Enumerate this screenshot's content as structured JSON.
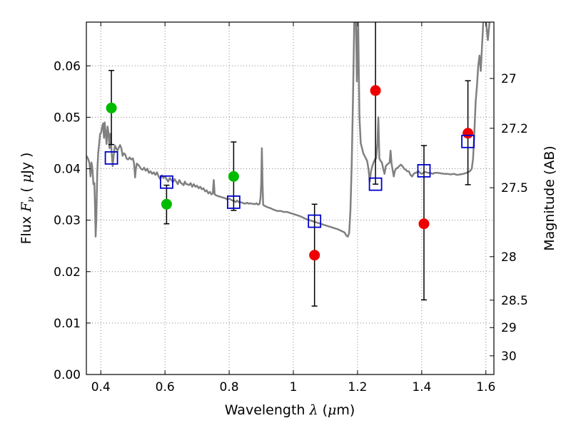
{
  "chart_data": {
    "type": "scatter",
    "title": "",
    "xlabel": {
      "prefix": "Wavelength  ",
      "symbol": "λ",
      "paren_open": " (",
      "unit_sym": "μ",
      "unit_rest": "m)"
    },
    "ylabel": {
      "prefix": "Flux  ",
      "symbol": "F",
      "subscript": "ν",
      "unit_open": "  ( ",
      "unit_sym": "μ",
      "unit_rest": "Jy )"
    },
    "y2label": "Magnitude (AB)",
    "xlim": [
      0.355,
      1.625
    ],
    "ylim": [
      0.0,
      0.0685
    ],
    "grid": true,
    "xticks": [
      0.4,
      0.6,
      0.8,
      1.0,
      1.2,
      1.4,
      1.6
    ],
    "xtick_labels": [
      "0.4",
      "0.6",
      "0.8",
      "1",
      "1.2",
      "1.4",
      "1.6"
    ],
    "yticks": [
      0.0,
      0.01,
      0.02,
      0.03,
      0.04,
      0.05,
      0.06
    ],
    "ytick_labels": [
      "0.00",
      "0.01",
      "0.02",
      "0.03",
      "0.04",
      "0.05",
      "0.06"
    ],
    "y2ticks": [
      27,
      27.2,
      27.5,
      28,
      28.5,
      29,
      30
    ],
    "y2tick_labels": [
      "27",
      "27.2",
      "27.5",
      "28",
      "28.5",
      "29",
      "30"
    ],
    "colors": {
      "spectrum": "#808080",
      "green": "#00bb00",
      "red": "#ee0000",
      "model": "#0000cc",
      "errorbar": "#000000",
      "grid": "#888888"
    },
    "spectrum": [
      [
        0.355,
        0.0425
      ],
      [
        0.36,
        0.042
      ],
      [
        0.365,
        0.041
      ],
      [
        0.368,
        0.0385
      ],
      [
        0.371,
        0.0412
      ],
      [
        0.374,
        0.04
      ],
      [
        0.377,
        0.037
      ],
      [
        0.38,
        0.0372
      ],
      [
        0.382,
        0.033
      ],
      [
        0.384,
        0.0268
      ],
      [
        0.386,
        0.03
      ],
      [
        0.389,
        0.0395
      ],
      [
        0.392,
        0.043
      ],
      [
        0.395,
        0.045
      ],
      [
        0.398,
        0.0468
      ],
      [
        0.401,
        0.047
      ],
      [
        0.404,
        0.048
      ],
      [
        0.407,
        0.0488
      ],
      [
        0.41,
        0.046
      ],
      [
        0.412,
        0.049
      ],
      [
        0.415,
        0.047
      ],
      [
        0.418,
        0.0448
      ],
      [
        0.421,
        0.0482
      ],
      [
        0.424,
        0.047
      ],
      [
        0.427,
        0.044
      ],
      [
        0.43,
        0.0468
      ],
      [
        0.434,
        0.043
      ],
      [
        0.437,
        0.0405
      ],
      [
        0.44,
        0.0425
      ],
      [
        0.444,
        0.0445
      ],
      [
        0.448,
        0.044
      ],
      [
        0.452,
        0.0435
      ],
      [
        0.456,
        0.0441
      ],
      [
        0.46,
        0.0446
      ],
      [
        0.464,
        0.044
      ],
      [
        0.468,
        0.0425
      ],
      [
        0.472,
        0.043
      ],
      [
        0.476,
        0.0428
      ],
      [
        0.48,
        0.042
      ],
      [
        0.485,
        0.0418
      ],
      [
        0.49,
        0.0422
      ],
      [
        0.495,
        0.0418
      ],
      [
        0.5,
        0.042
      ],
      [
        0.503,
        0.0413
      ],
      [
        0.505,
        0.04
      ],
      [
        0.507,
        0.0383
      ],
      [
        0.509,
        0.0398
      ],
      [
        0.512,
        0.041
      ],
      [
        0.516,
        0.0408
      ],
      [
        0.52,
        0.0405
      ],
      [
        0.525,
        0.04
      ],
      [
        0.53,
        0.0398
      ],
      [
        0.535,
        0.0402
      ],
      [
        0.54,
        0.0396
      ],
      [
        0.545,
        0.04
      ],
      [
        0.55,
        0.0392
      ],
      [
        0.555,
        0.0395
      ],
      [
        0.56,
        0.039
      ],
      [
        0.565,
        0.0393
      ],
      [
        0.57,
        0.0388
      ],
      [
        0.575,
        0.0393
      ],
      [
        0.58,
        0.0385
      ],
      [
        0.585,
        0.038
      ],
      [
        0.59,
        0.0387
      ],
      [
        0.595,
        0.0382
      ],
      [
        0.6,
        0.0385
      ],
      [
        0.605,
        0.038
      ],
      [
        0.61,
        0.0375
      ],
      [
        0.615,
        0.0382
      ],
      [
        0.62,
        0.0378
      ],
      [
        0.625,
        0.0374
      ],
      [
        0.63,
        0.038
      ],
      [
        0.635,
        0.0375
      ],
      [
        0.64,
        0.037
      ],
      [
        0.645,
        0.0378
      ],
      [
        0.65,
        0.0372
      ],
      [
        0.655,
        0.037
      ],
      [
        0.658,
        0.0368
      ],
      [
        0.662,
        0.0375
      ],
      [
        0.666,
        0.037
      ],
      [
        0.67,
        0.037
      ],
      [
        0.675,
        0.0368
      ],
      [
        0.68,
        0.0372
      ],
      [
        0.685,
        0.0365
      ],
      [
        0.69,
        0.037
      ],
      [
        0.695,
        0.0365
      ],
      [
        0.7,
        0.0367
      ],
      [
        0.705,
        0.0362
      ],
      [
        0.71,
        0.0365
      ],
      [
        0.715,
        0.036
      ],
      [
        0.72,
        0.0362
      ],
      [
        0.725,
        0.0356
      ],
      [
        0.73,
        0.0358
      ],
      [
        0.735,
        0.0352
      ],
      [
        0.74,
        0.0355
      ],
      [
        0.745,
        0.035
      ],
      [
        0.749,
        0.0352
      ],
      [
        0.752,
        0.0378
      ],
      [
        0.755,
        0.035
      ],
      [
        0.76,
        0.0348
      ],
      [
        0.765,
        0.0347
      ],
      [
        0.77,
        0.0346
      ],
      [
        0.775,
        0.0345
      ],
      [
        0.78,
        0.0344
      ],
      [
        0.785,
        0.0343
      ],
      [
        0.79,
        0.0342
      ],
      [
        0.795,
        0.034
      ],
      [
        0.8,
        0.0342
      ],
      [
        0.805,
        0.034
      ],
      [
        0.81,
        0.0338
      ],
      [
        0.815,
        0.0338
      ],
      [
        0.82,
        0.0335
      ],
      [
        0.825,
        0.0338
      ],
      [
        0.83,
        0.0335
      ],
      [
        0.835,
        0.0335
      ],
      [
        0.84,
        0.0334
      ],
      [
        0.845,
        0.0333
      ],
      [
        0.85,
        0.0332
      ],
      [
        0.855,
        0.0334
      ],
      [
        0.86,
        0.0332
      ],
      [
        0.865,
        0.0333
      ],
      [
        0.87,
        0.0332
      ],
      [
        0.875,
        0.0332
      ],
      [
        0.88,
        0.0331
      ],
      [
        0.885,
        0.0333
      ],
      [
        0.89,
        0.033
      ],
      [
        0.895,
        0.0332
      ],
      [
        0.898,
        0.0345
      ],
      [
        0.9,
        0.0372
      ],
      [
        0.902,
        0.044
      ],
      [
        0.904,
        0.0372
      ],
      [
        0.906,
        0.033
      ],
      [
        0.91,
        0.0328
      ],
      [
        0.92,
        0.0325
      ],
      [
        0.93,
        0.0323
      ],
      [
        0.94,
        0.032
      ],
      [
        0.95,
        0.0318
      ],
      [
        0.96,
        0.0318
      ],
      [
        0.97,
        0.0316
      ],
      [
        0.98,
        0.0316
      ],
      [
        0.99,
        0.0314
      ],
      [
        1.0,
        0.0312
      ],
      [
        1.01,
        0.031
      ],
      [
        1.02,
        0.0308
      ],
      [
        1.03,
        0.0305
      ],
      [
        1.04,
        0.0302
      ],
      [
        1.05,
        0.03
      ],
      [
        1.06,
        0.0298
      ],
      [
        1.07,
        0.0296
      ],
      [
        1.08,
        0.0294
      ],
      [
        1.09,
        0.0292
      ],
      [
        1.1,
        0.029
      ],
      [
        1.11,
        0.0288
      ],
      [
        1.12,
        0.0286
      ],
      [
        1.13,
        0.0284
      ],
      [
        1.14,
        0.0282
      ],
      [
        1.15,
        0.0279
      ],
      [
        1.16,
        0.0276
      ],
      [
        1.165,
        0.027
      ],
      [
        1.17,
        0.0268
      ],
      [
        1.174,
        0.0275
      ],
      [
        1.178,
        0.032
      ],
      [
        1.182,
        0.041
      ],
      [
        1.186,
        0.054
      ],
      [
        1.19,
        0.069
      ],
      [
        1.195,
        0.069
      ],
      [
        1.198,
        0.057
      ],
      [
        1.202,
        0.0685
      ],
      [
        1.206,
        0.05
      ],
      [
        1.21,
        0.045
      ],
      [
        1.214,
        0.044
      ],
      [
        1.218,
        0.043
      ],
      [
        1.222,
        0.0425
      ],
      [
        1.226,
        0.042
      ],
      [
        1.23,
        0.0415
      ],
      [
        1.234,
        0.04
      ],
      [
        1.238,
        0.0375
      ],
      [
        1.242,
        0.0395
      ],
      [
        1.246,
        0.0405
      ],
      [
        1.25,
        0.0412
      ],
      [
        1.254,
        0.0418
      ],
      [
        1.258,
        0.042
      ],
      [
        1.262,
        0.045
      ],
      [
        1.265,
        0.05
      ],
      [
        1.268,
        0.042
      ],
      [
        1.272,
        0.0415
      ],
      [
        1.276,
        0.0412
      ],
      [
        1.28,
        0.04
      ],
      [
        1.284,
        0.039
      ],
      [
        1.288,
        0.0405
      ],
      [
        1.292,
        0.0408
      ],
      [
        1.296,
        0.041
      ],
      [
        1.3,
        0.0412
      ],
      [
        1.303,
        0.0435
      ],
      [
        1.306,
        0.041
      ],
      [
        1.31,
        0.0395
      ],
      [
        1.313,
        0.0385
      ],
      [
        1.316,
        0.0395
      ],
      [
        1.32,
        0.04
      ],
      [
        1.325,
        0.0402
      ],
      [
        1.33,
        0.0405
      ],
      [
        1.335,
        0.0408
      ],
      [
        1.34,
        0.0405
      ],
      [
        1.345,
        0.04
      ],
      [
        1.35,
        0.0398
      ],
      [
        1.355,
        0.0395
      ],
      [
        1.36,
        0.0395
      ],
      [
        1.365,
        0.0388
      ],
      [
        1.37,
        0.0385
      ],
      [
        1.375,
        0.039
      ],
      [
        1.38,
        0.0392
      ],
      [
        1.385,
        0.0393
      ],
      [
        1.39,
        0.0395
      ],
      [
        1.395,
        0.0392
      ],
      [
        1.4,
        0.039
      ],
      [
        1.405,
        0.0392
      ],
      [
        1.41,
        0.0394
      ],
      [
        1.415,
        0.0393
      ],
      [
        1.42,
        0.0392
      ],
      [
        1.425,
        0.0392
      ],
      [
        1.43,
        0.0391
      ],
      [
        1.435,
        0.039
      ],
      [
        1.44,
        0.0392
      ],
      [
        1.45,
        0.0392
      ],
      [
        1.46,
        0.0391
      ],
      [
        1.47,
        0.039
      ],
      [
        1.48,
        0.039
      ],
      [
        1.49,
        0.0389
      ],
      [
        1.5,
        0.039
      ],
      [
        1.51,
        0.0388
      ],
      [
        1.52,
        0.0389
      ],
      [
        1.53,
        0.039
      ],
      [
        1.54,
        0.0392
      ],
      [
        1.55,
        0.0395
      ],
      [
        1.556,
        0.04
      ],
      [
        1.56,
        0.042
      ],
      [
        1.564,
        0.047
      ],
      [
        1.568,
        0.053
      ],
      [
        1.572,
        0.056
      ],
      [
        1.576,
        0.06
      ],
      [
        1.58,
        0.062
      ],
      [
        1.584,
        0.059
      ],
      [
        1.588,
        0.064
      ],
      [
        1.592,
        0.0688
      ],
      [
        1.6,
        0.0688
      ],
      [
        1.606,
        0.065
      ],
      [
        1.612,
        0.069
      ],
      [
        1.618,
        0.069
      ],
      [
        1.625,
        0.069
      ]
    ],
    "series": [
      {
        "name": "observed-green",
        "marker": "circle",
        "color": "#00bb00",
        "points": [
          {
            "x": 0.433,
            "y": 0.0518,
            "err_lo": 0.0447,
            "err_hi": 0.0591
          },
          {
            "x": 0.605,
            "y": 0.0331,
            "err_lo": 0.0293,
            "err_hi": 0.0368
          },
          {
            "x": 0.814,
            "y": 0.0385,
            "err_lo": 0.0319,
            "err_hi": 0.0452
          }
        ]
      },
      {
        "name": "observed-red",
        "marker": "circle",
        "color": "#ee0000",
        "points": [
          {
            "x": 1.066,
            "y": 0.0232,
            "err_lo": 0.0133,
            "err_hi": 0.0331
          },
          {
            "x": 1.256,
            "y": 0.0552,
            "err_lo": 0.037,
            "err_hi": 0.069
          },
          {
            "x": 1.407,
            "y": 0.0293,
            "err_lo": 0.0145,
            "err_hi": 0.0445
          },
          {
            "x": 1.544,
            "y": 0.0469,
            "err_lo": 0.0369,
            "err_hi": 0.0571
          }
        ]
      },
      {
        "name": "model",
        "marker": "square-open",
        "color": "#0000cc",
        "points": [
          {
            "x": 0.433,
            "y": 0.0421
          },
          {
            "x": 0.605,
            "y": 0.0374
          },
          {
            "x": 0.814,
            "y": 0.0335
          },
          {
            "x": 1.066,
            "y": 0.0298
          },
          {
            "x": 1.256,
            "y": 0.037
          },
          {
            "x": 1.407,
            "y": 0.0396
          },
          {
            "x": 1.544,
            "y": 0.0453
          }
        ]
      }
    ]
  }
}
